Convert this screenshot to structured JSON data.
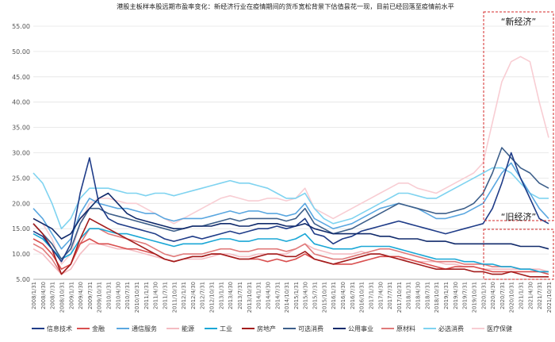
{
  "chart_data": {
    "type": "line",
    "title": "港股主板样本股远期市盈率变化：新经济行业在疫情期间的货币宽松背景下估值昙花一现，目前已经回落至疫情前水平",
    "annotations": [
      "“新经济”",
      "“旧经济”"
    ],
    "ylim": [
      5.0,
      55.0
    ],
    "yticks": [
      "5.00",
      "10.00",
      "15.00",
      "20.00",
      "25.00",
      "30.00",
      "35.00",
      "40.00",
      "45.00",
      "50.00",
      "55.00"
    ],
    "x": [
      "2008/1/31",
      "2008/4/30",
      "2008/7/31",
      "2008/10/31",
      "2009/1/31",
      "2009/4/30",
      "2009/7/31",
      "2009/10/31",
      "2010/1/31",
      "2010/4/30",
      "2010/7/31",
      "2010/10/31",
      "2011/1/31",
      "2011/4/30",
      "2011/7/31",
      "2011/10/31",
      "2012/1/31",
      "2012/4/30",
      "2012/7/31",
      "2012/10/31",
      "2013/1/31",
      "2013/4/30",
      "2013/7/31",
      "2013/10/31",
      "2014/1/31",
      "2014/4/30",
      "2014/7/31",
      "2014/10/31",
      "2015/1/31",
      "2015/4/30",
      "2015/7/31",
      "2015/10/31",
      "2016/1/31",
      "2016/4/30",
      "2016/7/31",
      "2016/10/31",
      "2017/1/31",
      "2017/4/30",
      "2017/7/31",
      "2017/10/31",
      "2018/1/31",
      "2018/4/30",
      "2018/7/31",
      "2018/10/31",
      "2019/1/31",
      "2019/4/30",
      "2019/7/31",
      "2019/10/31",
      "2020/1/31",
      "2020/4/30",
      "2020/7/31",
      "2020/10/31",
      "2021/1/31",
      "2021/4/30",
      "2021/7/31",
      "2021/10/31"
    ],
    "series": [
      {
        "name": "信息技术",
        "color": "#1f3c88",
        "values": [
          14.5,
          13.5,
          11,
          8.5,
          12,
          22,
          29,
          20,
          17,
          16,
          15.5,
          15,
          14.5,
          14,
          13,
          12.5,
          13,
          13.5,
          13,
          13.5,
          14,
          14.5,
          14,
          14.5,
          15,
          15,
          15.5,
          15,
          15.5,
          17,
          14,
          13.5,
          12,
          13,
          13.5,
          14.5,
          15,
          15.5,
          16,
          16.5,
          16,
          15.5,
          15,
          14.5,
          14,
          14.5,
          15,
          15.5,
          16,
          19,
          24,
          30,
          25,
          21,
          17,
          16
        ]
      },
      {
        "name": "金融",
        "color": "#d94f4f",
        "values": [
          13,
          12,
          10,
          7,
          8,
          12,
          13,
          12,
          12,
          11.5,
          11,
          11,
          10.5,
          10,
          9,
          8.5,
          9,
          9.5,
          9.5,
          10,
          10,
          9.5,
          9,
          9,
          9,
          8.5,
          9,
          8.5,
          9,
          10,
          9,
          8.5,
          8,
          8,
          8,
          8.5,
          9,
          9.5,
          9.5,
          9.5,
          9,
          8.5,
          8,
          7.5,
          7,
          7.5,
          7.5,
          7.5,
          7,
          6.5,
          6.5,
          6.5,
          6.5,
          6.5,
          6.5,
          6
        ]
      },
      {
        "name": "通信服务",
        "color": "#5aa7e0",
        "values": [
          19,
          17,
          14,
          11,
          13,
          18,
          21,
          20,
          19.5,
          19,
          19,
          18.5,
          18,
          18,
          17,
          16.5,
          17,
          17,
          17,
          17.5,
          18,
          18.5,
          18,
          18.5,
          18.5,
          18,
          18,
          17.5,
          18,
          20,
          17,
          16,
          15,
          15.5,
          16,
          17,
          18,
          19,
          19.5,
          20,
          19.5,
          19,
          18,
          17,
          17,
          17.5,
          18,
          19,
          20,
          23,
          26,
          28,
          25,
          22,
          19,
          17
        ]
      },
      {
        "name": "能源",
        "color": "#f4bcc2",
        "values": [
          11,
          10,
          8,
          6,
          7,
          10,
          12,
          12,
          11.5,
          11,
          11,
          10.5,
          10,
          9.5,
          9,
          8.5,
          9,
          9,
          9,
          9.5,
          10,
          10,
          9.5,
          9.5,
          10,
          10,
          10,
          10,
          11,
          12,
          11,
          10.5,
          10,
          10,
          10,
          10.5,
          10,
          10,
          9.5,
          9,
          9,
          8.5,
          8.5,
          8.5,
          8,
          8,
          7.5,
          7.5,
          7,
          7,
          7,
          7,
          7,
          7,
          7,
          6.5
        ]
      },
      {
        "name": "工业",
        "color": "#1aa7d6",
        "values": [
          14,
          13,
          11,
          9,
          10,
          13,
          15,
          15,
          14.5,
          14,
          14,
          13.5,
          13,
          12.5,
          12,
          11.5,
          12,
          12,
          12,
          12.5,
          13,
          13,
          12.5,
          12.5,
          13,
          13,
          13,
          12.5,
          13,
          14,
          12,
          11.5,
          11,
          11,
          11,
          11.5,
          11.5,
          11.5,
          11.5,
          11,
          10.5,
          10,
          9.5,
          9,
          9,
          9,
          8.5,
          8.5,
          8,
          8,
          7.5,
          7.5,
          7,
          7,
          6.5,
          6.5
        ]
      },
      {
        "name": "房地产",
        "color": "#a31c1c",
        "values": [
          16,
          14,
          11,
          6,
          8,
          13,
          17,
          16,
          15,
          14,
          13,
          12,
          11,
          10,
          9,
          8.5,
          9,
          9.5,
          9.5,
          10,
          10,
          9.5,
          9,
          9,
          9.5,
          10,
          10,
          9.5,
          9.5,
          10.5,
          9,
          8.5,
          8,
          8.5,
          9,
          9.5,
          10,
          10,
          9.5,
          9,
          8.5,
          8,
          7.5,
          7,
          7,
          7,
          7,
          6.5,
          6.5,
          6,
          6,
          6.5,
          6,
          5.5,
          5.5,
          5.5
        ]
      },
      {
        "name": "可选消费",
        "color": "#3d5f8a",
        "values": [
          16,
          14,
          12,
          9,
          11,
          16,
          19,
          19,
          18,
          17.5,
          17,
          16.5,
          16,
          15.5,
          15,
          14.5,
          15,
          15.5,
          15.5,
          16,
          16.5,
          17,
          16.5,
          17,
          17,
          17,
          17,
          16.5,
          17,
          19,
          16,
          15,
          14,
          14.5,
          15,
          16,
          17,
          18,
          19,
          20,
          19.5,
          19,
          18.5,
          18,
          18,
          18.5,
          19,
          20,
          22,
          26,
          31,
          29,
          27,
          26,
          24,
          23
        ]
      },
      {
        "name": "公用事业",
        "color": "#102a6b",
        "values": [
          17,
          16,
          15,
          13,
          14,
          17,
          19,
          21,
          22,
          20,
          18,
          17,
          16.5,
          16,
          15.5,
          15,
          15,
          15.5,
          15.5,
          15.5,
          16,
          16,
          15.5,
          15.5,
          16,
          16,
          16,
          15.5,
          15.5,
          16,
          15,
          14.5,
          14,
          14,
          14,
          14,
          14,
          13.5,
          13.5,
          13,
          13,
          13,
          12.5,
          12.5,
          12.5,
          12,
          12,
          12,
          12,
          12,
          12,
          12,
          11.5,
          11.5,
          11.5,
          11
        ]
      },
      {
        "name": "原材料",
        "color": "#e07a7a",
        "values": [
          12,
          11,
          9,
          6,
          8,
          12,
          15,
          15,
          14,
          13.5,
          13,
          12.5,
          12,
          11,
          10,
          9.5,
          10,
          10,
          10,
          10.5,
          11,
          11,
          10.5,
          10.5,
          11,
          11,
          11,
          10.5,
          11,
          12,
          10,
          9.5,
          9,
          9,
          9.5,
          10,
          10.5,
          11,
          11,
          10.5,
          10,
          9.5,
          9,
          8.5,
          8.5,
          8.5,
          8,
          8,
          8,
          7.5,
          7.5,
          7.5,
          7,
          7,
          6.5,
          6.5
        ]
      },
      {
        "name": "必选消费",
        "color": "#7fd3f0",
        "values": [
          26,
          24,
          20,
          15,
          17,
          21,
          23,
          23,
          23,
          22.5,
          22,
          22,
          21.5,
          22,
          22,
          21.5,
          22,
          22.5,
          23,
          23.5,
          24,
          24.5,
          24,
          24,
          23.5,
          23,
          22,
          21,
          21,
          22,
          19,
          17,
          16,
          16.5,
          17,
          18,
          19,
          20,
          21,
          22,
          22,
          21.5,
          21,
          21,
          22,
          23,
          24,
          25,
          26,
          27,
          27,
          26,
          24,
          22,
          21,
          21
        ]
      },
      {
        "name": "医疗保健",
        "color": "#f8cdd3",
        "values": [
          17,
          16,
          13,
          8,
          10,
          16,
          20,
          21,
          21,
          20.5,
          20,
          20,
          19,
          18,
          17,
          16,
          17,
          18,
          19,
          20,
          21,
          21.5,
          21,
          20.5,
          20.5,
          21,
          21,
          20.5,
          21,
          23,
          19,
          18,
          17,
          18,
          19,
          20,
          21,
          22,
          23,
          24,
          24,
          23,
          22.5,
          22,
          23,
          24,
          25,
          26,
          28,
          36,
          44,
          48,
          49,
          48,
          40,
          33
        ]
      }
    ]
  }
}
